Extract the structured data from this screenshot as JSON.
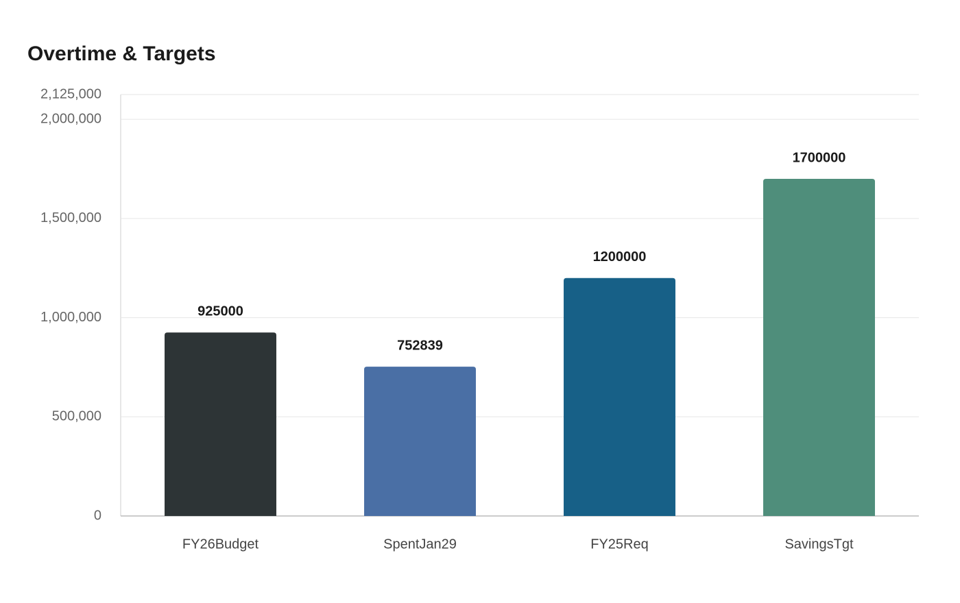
{
  "chart_data": {
    "type": "bar",
    "title": "Overtime & Targets",
    "categories": [
      "FY26Budget",
      "SpentJan29",
      "FY25Req",
      "SavingsTgt"
    ],
    "values": [
      925000,
      752839,
      1200000,
      1700000
    ],
    "colors": [
      "#2d3436",
      "#4a6fa5",
      "#176087",
      "#4f8e7b"
    ],
    "ylim": [
      0,
      2125000
    ],
    "yticks": [
      0,
      {
        "value": 500000,
        "label": "500,000"
      },
      {
        "value": 1000000,
        "label": "1,000,000"
      },
      {
        "value": 1500000,
        "label": "1,500,000"
      },
      {
        "value": 2000000,
        "label": "2,000,000"
      },
      {
        "value": 2125000,
        "label": "2,125,000"
      }
    ],
    "grid": true
  }
}
